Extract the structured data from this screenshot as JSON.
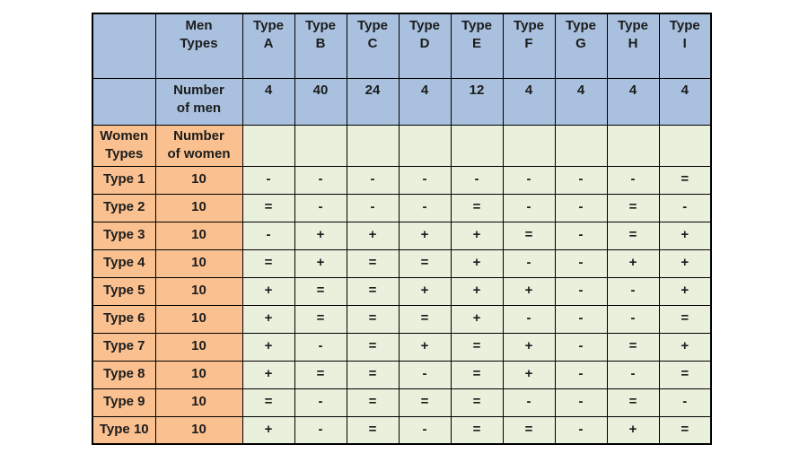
{
  "table": {
    "corner_label": "",
    "men_types_label": "Men\nTypes",
    "number_of_men_label": "Number\nof men",
    "women_types_label": "Women\nTypes",
    "number_of_women_label": "Number\nof women",
    "men_type_columns": [
      "Type\nA",
      "Type\nB",
      "Type\nC",
      "Type\nD",
      "Type\nE",
      "Type\nF",
      "Type\nG",
      "Type\nH",
      "Type\nI"
    ],
    "men_counts": [
      "4",
      "40",
      "24",
      "4",
      "12",
      "4",
      "4",
      "4",
      "4"
    ],
    "women_rows": [
      {
        "label": "Type 1",
        "count": "10",
        "preferences": [
          "-",
          "-",
          "-",
          "-",
          "-",
          "-",
          "-",
          "-",
          "="
        ]
      },
      {
        "label": "Type 2",
        "count": "10",
        "preferences": [
          "=",
          "-",
          "-",
          "-",
          "=",
          "-",
          "-",
          "=",
          "-"
        ]
      },
      {
        "label": "Type 3",
        "count": "10",
        "preferences": [
          "-",
          "+",
          "+",
          "+",
          "+",
          "=",
          "-",
          "=",
          "+"
        ]
      },
      {
        "label": "Type 4",
        "count": "10",
        "preferences": [
          "=",
          "+",
          "=",
          "=",
          "+",
          "-",
          "-",
          "+",
          "+"
        ]
      },
      {
        "label": "Type 5",
        "count": "10",
        "preferences": [
          "+",
          "=",
          "=",
          "+",
          "+",
          "+",
          "-",
          "-",
          "+"
        ]
      },
      {
        "label": "Type 6",
        "count": "10",
        "preferences": [
          "+",
          "=",
          "=",
          "=",
          "+",
          "-",
          "-",
          "-",
          "="
        ]
      },
      {
        "label": "Type 7",
        "count": "10",
        "preferences": [
          "+",
          "-",
          "=",
          "+",
          "=",
          "+",
          "-",
          "=",
          "+"
        ]
      },
      {
        "label": "Type 8",
        "count": "10",
        "preferences": [
          "+",
          "=",
          "=",
          "-",
          "=",
          "+",
          "-",
          "-",
          "="
        ]
      },
      {
        "label": "Type 9",
        "count": "10",
        "preferences": [
          "=",
          "-",
          "=",
          "=",
          "=",
          "-",
          "-",
          "=",
          "-"
        ]
      },
      {
        "label": "Type 10",
        "count": "10",
        "preferences": [
          "+",
          "-",
          "=",
          "-",
          "=",
          "=",
          "-",
          "+",
          "="
        ]
      }
    ]
  },
  "colors": {
    "header_blue": "#a9c0de",
    "women_peach": "#fac090",
    "cell_green": "#e9f0dc",
    "border_black": "#000000"
  }
}
